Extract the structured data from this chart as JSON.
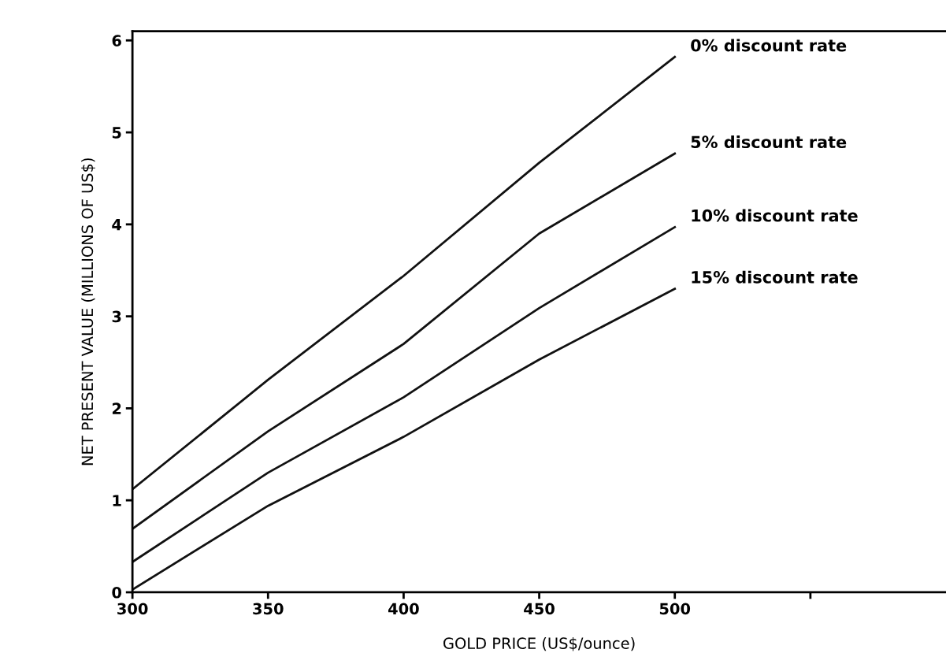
{
  "chart_data": {
    "type": "line",
    "xlabel": "GOLD PRICE (US$/ounce)",
    "ylabel": "NET PRESENT VALUE (MILLIONS OF US$)",
    "x": [
      300,
      350,
      400,
      450,
      500
    ],
    "series": [
      {
        "name": "0% discount rate",
        "color": "#111111",
        "values": [
          1.12,
          2.31,
          3.44,
          4.67,
          5.82
        ]
      },
      {
        "name": "5% discount rate",
        "color": "#111111",
        "values": [
          0.69,
          1.75,
          2.7,
          3.9,
          4.77
        ]
      },
      {
        "name": "10% discount rate",
        "color": "#111111",
        "values": [
          0.33,
          1.3,
          2.12,
          3.09,
          3.97
        ]
      },
      {
        "name": "15% discount rate",
        "color": "#111111",
        "values": [
          0.03,
          0.94,
          1.69,
          2.53,
          3.3
        ]
      }
    ],
    "xlim": [
      300,
      600
    ],
    "xticks": [
      300,
      350,
      400,
      450,
      500,
      {
        "value": 550,
        "label": null
      }
    ],
    "ylim": [
      0,
      6.1
    ],
    "yticks": [
      0,
      1,
      2,
      3,
      4,
      5,
      6
    ],
    "grid": false,
    "marker": "none",
    "line_style": "solid"
  }
}
